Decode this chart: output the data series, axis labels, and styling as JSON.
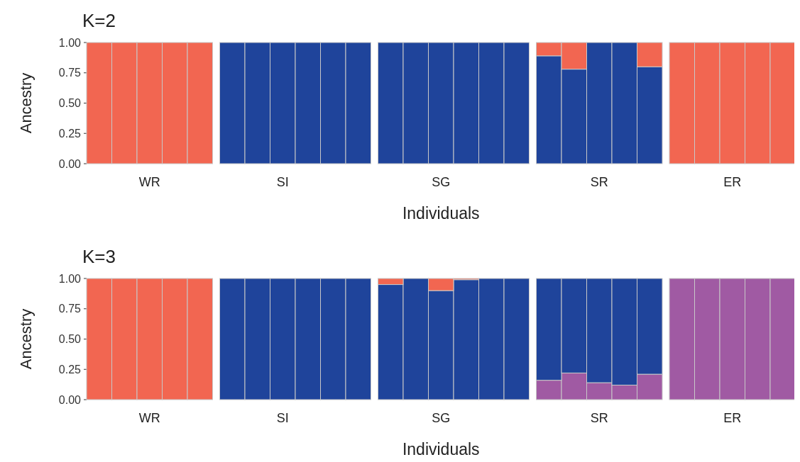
{
  "chart_data": [
    {
      "type": "bar",
      "stacked": true,
      "title": "K=2",
      "ylabel": "Ancestry",
      "xlabel": "Individuals",
      "categories": [
        null,
        null,
        "WR",
        null,
        null,
        null,
        null,
        "SI",
        null,
        null,
        null,
        null,
        null,
        "SG",
        null,
        null,
        null,
        null,
        null,
        "SR",
        null,
        null,
        null,
        null,
        "ER",
        null,
        null
      ],
      "series": [
        {
          "color": "#1f449b",
          "values": [
            null,
            null,
            null,
            null,
            null,
            1,
            1,
            1,
            1,
            1,
            1,
            1,
            1,
            1,
            1,
            1,
            1,
            0.89,
            0.78,
            1,
            1,
            0.8,
            null,
            null,
            null,
            null,
            null
          ]
        },
        {
          "color": "#f26651",
          "values": [
            1,
            1,
            1,
            1,
            1,
            null,
            null,
            null,
            null,
            null,
            null,
            null,
            null,
            null,
            null,
            null,
            null,
            0.11,
            0.22,
            null,
            null,
            0.2,
            1,
            1,
            1,
            1,
            1
          ]
        }
      ],
      "ylim": [
        0,
        1
      ],
      "yticks": [
        {
          "value": 0,
          "label": "0.00"
        },
        {
          "value": 0.25,
          "label": "0.25"
        },
        {
          "value": 0.5,
          "label": "0.50"
        },
        {
          "value": 0.75,
          "label": "0.75"
        },
        {
          "value": 1,
          "label": "1.00"
        }
      ]
    },
    {
      "type": "bar",
      "stacked": true,
      "title": "K=3",
      "ylabel": "Ancestry",
      "xlabel": "Individuals",
      "categories": [
        null,
        null,
        "WR",
        null,
        null,
        null,
        null,
        "SI",
        null,
        null,
        null,
        null,
        null,
        "SG",
        null,
        null,
        null,
        null,
        null,
        "SR",
        null,
        null,
        null,
        null,
        "ER",
        null,
        null
      ],
      "series": [
        {
          "color": "#a05aa3",
          "values": [
            null,
            null,
            null,
            null,
            null,
            null,
            null,
            null,
            null,
            null,
            null,
            null,
            null,
            null,
            null,
            null,
            null,
            0.16,
            0.22,
            0.14,
            0.12,
            0.21,
            1,
            1,
            1,
            1,
            1
          ]
        },
        {
          "color": "#1f449b",
          "values": [
            null,
            null,
            null,
            null,
            null,
            1,
            1,
            1,
            1,
            1,
            1,
            0.95,
            1,
            0.9,
            0.99,
            1,
            1,
            0.84,
            0.78,
            0.86,
            0.88,
            0.79,
            null,
            null,
            null,
            null,
            null
          ]
        },
        {
          "color": "#f26651",
          "values": [
            1,
            1,
            1,
            1,
            1,
            null,
            null,
            null,
            null,
            null,
            null,
            0.05,
            null,
            0.1,
            0.01,
            null,
            null,
            null,
            null,
            null,
            null,
            null,
            null,
            null,
            null,
            null,
            null
          ]
        }
      ],
      "ylim": [
        0,
        1
      ],
      "yticks": [
        {
          "value": 0,
          "label": "0.00"
        },
        {
          "value": 0.25,
          "label": "0.25"
        },
        {
          "value": 0.5,
          "label": "0.50"
        },
        {
          "value": 0.75,
          "label": "0.75"
        },
        {
          "value": 1,
          "label": "1.00"
        }
      ]
    }
  ]
}
